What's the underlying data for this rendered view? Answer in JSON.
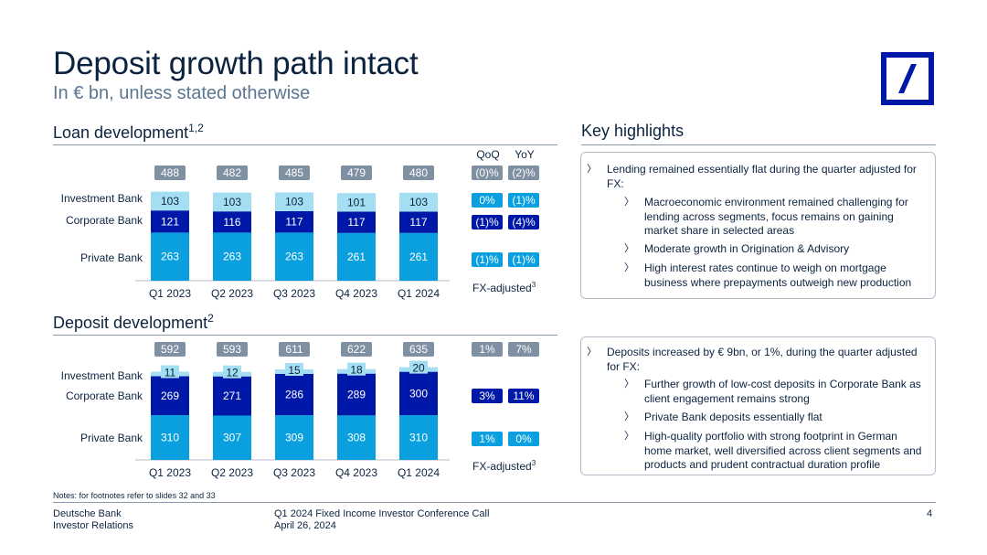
{
  "header": {
    "title": "Deposit growth path intact",
    "subtitle": "In € bn, unless stated otherwise"
  },
  "colors": {
    "navy": "#0c2340",
    "dark_blue": "#0018a8",
    "mid_blue": "#0aa0e0",
    "light_blue": "#a3def2",
    "badge_grey": "#7f90a3",
    "badge_blue": "#0aa0e0"
  },
  "loan": {
    "title": "Loan development",
    "sup": "1,2",
    "col_qoq": "QoQ",
    "col_yoy": "YoY",
    "fx_label": "FX-adjusted",
    "fx_sup": "3"
  },
  "deposit": {
    "title": "Deposit development",
    "sup": "2",
    "fx_label": "FX-adjusted",
    "fx_sup": "3"
  },
  "chart_data": [
    {
      "type": "bar",
      "stacked": true,
      "title": "Loan development",
      "categories": [
        "Q1 2023",
        "Q2 2023",
        "Q3 2023",
        "Q4 2023",
        "Q1 2024"
      ],
      "series": [
        {
          "name": "Private Bank",
          "values": [
            263,
            263,
            263,
            261,
            261
          ],
          "color": "#0aa0e0"
        },
        {
          "name": "Corporate Bank",
          "values": [
            121,
            116,
            117,
            117,
            117
          ],
          "color": "#0018a8"
        },
        {
          "name": "Investment Bank",
          "values": [
            103,
            103,
            103,
            101,
            103
          ],
          "color": "#a3def2"
        }
      ],
      "totals": [
        488,
        482,
        485,
        479,
        480
      ],
      "change": {
        "total": {
          "qoq": "(0)%",
          "yoy": "(2)%"
        },
        "Investment Bank": {
          "qoq": "0%",
          "yoy": "(1)%"
        },
        "Corporate Bank": {
          "qoq": "(1)%",
          "yoy": "(4)%"
        },
        "Private Bank": {
          "qoq": "(1)%",
          "yoy": "(1)%"
        }
      }
    },
    {
      "type": "bar",
      "stacked": true,
      "title": "Deposit development",
      "categories": [
        "Q1 2023",
        "Q2 2023",
        "Q3 2023",
        "Q4 2023",
        "Q1 2024"
      ],
      "series": [
        {
          "name": "Private Bank",
          "values": [
            310,
            307,
            309,
            308,
            310
          ],
          "color": "#0aa0e0"
        },
        {
          "name": "Corporate Bank",
          "values": [
            269,
            271,
            286,
            289,
            300
          ],
          "color": "#0018a8"
        },
        {
          "name": "Investment Bank",
          "values": [
            11,
            12,
            15,
            18,
            20
          ],
          "color": "#a3def2"
        }
      ],
      "totals": [
        592,
        593,
        611,
        622,
        635
      ],
      "change": {
        "total": {
          "qoq": "1%",
          "yoy": "7%"
        },
        "Corporate Bank": {
          "qoq": "3%",
          "yoy": "11%"
        },
        "Private Bank": {
          "qoq": "1%",
          "yoy": "0%"
        }
      }
    }
  ],
  "highlights": {
    "title": "Key highlights",
    "box1": {
      "main": "Lending remained essentially flat during the quarter adjusted for FX:",
      "subs": [
        "Macroeconomic environment remained challenging for lending across segments, focus remains on gaining market share in selected areas",
        "Moderate growth in Origination & Advisory",
        "High interest rates continue to weigh on mortgage business where prepayments outweigh new production"
      ]
    },
    "box2": {
      "main": "Deposits increased by € 9bn, or 1%, during the quarter adjusted for FX:",
      "subs": [
        "Further growth of low-cost deposits in Corporate Bank as client engagement remains strong",
        "Private Bank deposits essentially flat",
        "High-quality portfolio with strong footprint in German home market, well diversified across client segments and products and prudent contractual duration profile"
      ]
    },
    "chevron": "〉"
  },
  "footer": {
    "notes": "Notes: for footnotes refer to slides 32 and 33",
    "org_line1": "Deutsche Bank",
    "org_line2": "Investor Relations",
    "event_line1": "Q1 2024 Fixed Income Investor Conference Call",
    "event_line2": "April 26, 2024",
    "page": "4"
  }
}
